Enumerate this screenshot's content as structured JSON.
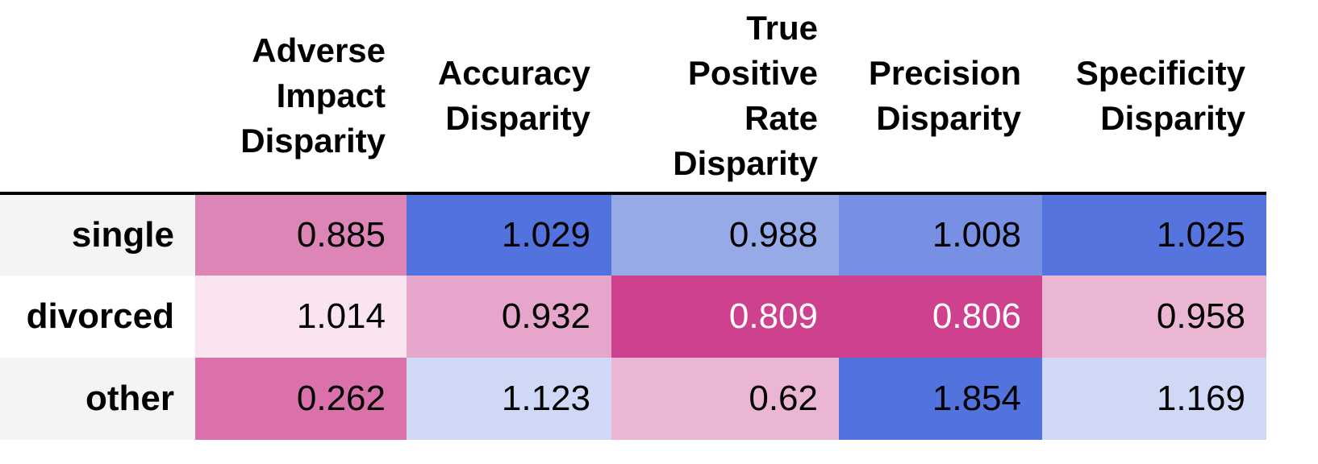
{
  "chart_data": {
    "type": "table",
    "columns": [
      "Adverse Impact Disparity",
      "Accuracy Disparity",
      "True Positive Rate Disparity",
      "Precision Disparity",
      "Specificity Disparity"
    ],
    "column_lines": [
      [
        "Adverse",
        "Impact",
        "Disparity"
      ],
      [
        "Accuracy",
        "Disparity"
      ],
      [
        "True",
        "Positive",
        "Rate",
        "Disparity"
      ],
      [
        "Precision",
        "Disparity"
      ],
      [
        "Specificity",
        "Disparity"
      ]
    ],
    "rows": [
      {
        "label": "single",
        "values": [
          "0.885",
          "1.029",
          "0.988",
          "1.008",
          "1.025"
        ],
        "colors": [
          "#dd85b6",
          "#5272dd",
          "#97aae8",
          "#7790e3",
          "#5574dd"
        ],
        "text_colors": [
          "#000000",
          "#000000",
          "#000000",
          "#000000",
          "#000000"
        ]
      },
      {
        "label": "divorced",
        "values": [
          "1.014",
          "0.932",
          "0.809",
          "0.806",
          "0.958"
        ],
        "colors": [
          "#f9e4f0",
          "#e6a5ca",
          "#cd418e",
          "#cd418e",
          "#ebb6d4"
        ],
        "text_colors": [
          "#000000",
          "#000000",
          "#ffffff",
          "#ffffff",
          "#000000"
        ]
      },
      {
        "label": "other",
        "values": [
          "0.262",
          "1.123",
          "0.62",
          "1.854",
          "1.169"
        ],
        "colors": [
          "#da71ab",
          "#cfd8f4",
          "#ebb5d4",
          "#5272dd",
          "#cfd8f4"
        ],
        "text_colors": [
          "#000000",
          "#000000",
          "#000000",
          "#000000",
          "#000000"
        ]
      }
    ]
  }
}
